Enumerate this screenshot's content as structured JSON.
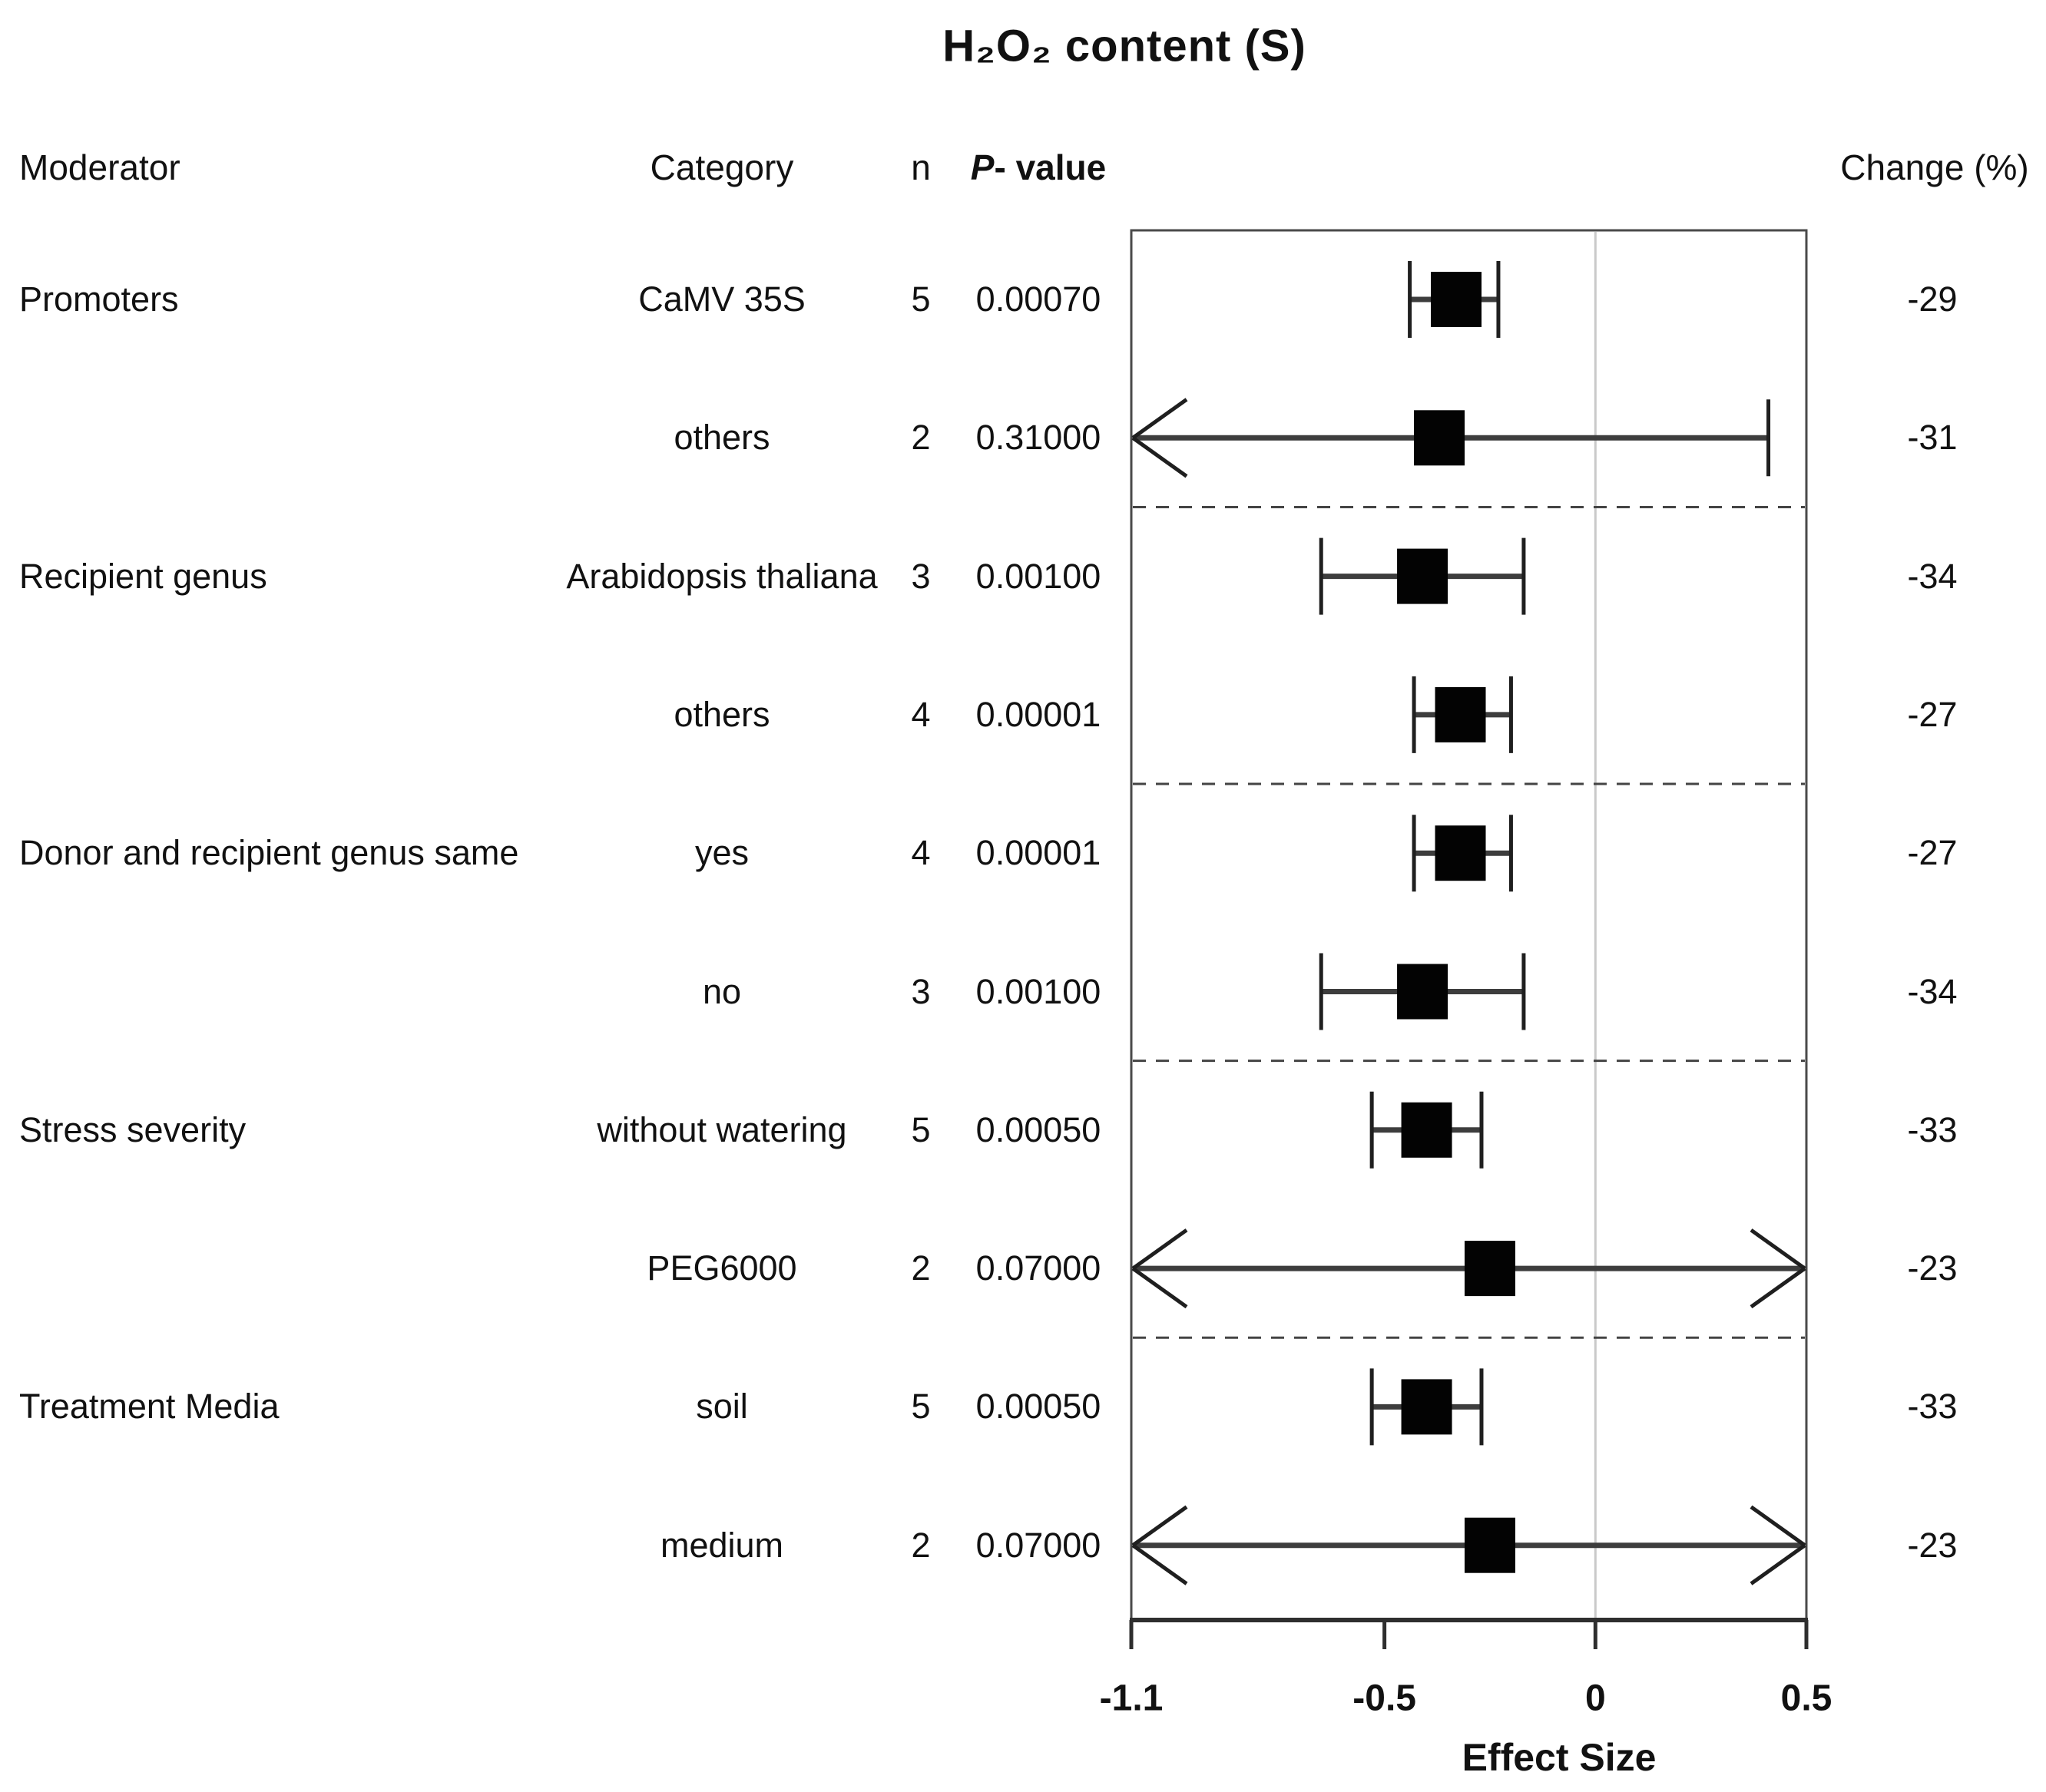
{
  "title": "H₂O₂ content (S)",
  "columns": {
    "moderator": "Moderator",
    "category": "Category",
    "n": "n",
    "pvalue_p": "P",
    "pvalue_rest": "- value",
    "change": "Change (%)"
  },
  "axis": {
    "label": "Effect Size",
    "tick_labels": [
      "-1.1",
      "-0.5",
      "0",
      "0.5"
    ]
  },
  "colors": {
    "text": "#111111",
    "square": "#030303",
    "ci_line": "#3d3d3d",
    "cap_line": "#1f1f1f",
    "box_border": "#4a4a4a",
    "axis_line": "#2e2e2e",
    "zero_line": "#c9c9c9",
    "separator": "#444444"
  },
  "chart_data": {
    "type": "forest",
    "title": "H₂O₂ content (S)",
    "xlabel": "Effect Size",
    "xlim": [
      -1.1,
      0.5
    ],
    "x_ticks": [
      -1.1,
      -0.5,
      0,
      0.5
    ],
    "zero_reference": 0,
    "separators_after_rows": [
      1,
      3,
      5,
      7
    ],
    "rows": [
      {
        "moderator": "Promoters",
        "category": "CaMV 35S",
        "n": "5",
        "p_value": "0.00070",
        "estimate": -0.33,
        "ci_low": -0.44,
        "ci_high": -0.23,
        "low_arrow": false,
        "high_arrow": false,
        "change_pct": "-29"
      },
      {
        "moderator": "",
        "category": "others",
        "n": "2",
        "p_value": "0.31000",
        "estimate": -0.37,
        "ci_low": -1.1,
        "ci_high": 0.41,
        "low_arrow": true,
        "high_arrow": false,
        "change_pct": "-31"
      },
      {
        "moderator": "Recipient genus",
        "category": "Arabidopsis thaliana",
        "n": "3",
        "p_value": "0.00100",
        "estimate": -0.41,
        "ci_low": -0.65,
        "ci_high": -0.17,
        "low_arrow": false,
        "high_arrow": false,
        "change_pct": "-34"
      },
      {
        "moderator": "",
        "category": "others",
        "n": "4",
        "p_value": "0.00001",
        "estimate": -0.32,
        "ci_low": -0.43,
        "ci_high": -0.2,
        "low_arrow": false,
        "high_arrow": false,
        "change_pct": "-27"
      },
      {
        "moderator": "Donor and recipient genus same",
        "category": "yes",
        "n": "4",
        "p_value": "0.00001",
        "estimate": -0.32,
        "ci_low": -0.43,
        "ci_high": -0.2,
        "low_arrow": false,
        "high_arrow": false,
        "change_pct": "-27"
      },
      {
        "moderator": "",
        "category": "no",
        "n": "3",
        "p_value": "0.00100",
        "estimate": -0.41,
        "ci_low": -0.65,
        "ci_high": -0.17,
        "low_arrow": false,
        "high_arrow": false,
        "change_pct": "-34"
      },
      {
        "moderator": "Stress severity",
        "category": "without watering",
        "n": "5",
        "p_value": "0.00050",
        "estimate": -0.4,
        "ci_low": -0.53,
        "ci_high": -0.27,
        "low_arrow": false,
        "high_arrow": false,
        "change_pct": "-33"
      },
      {
        "moderator": "",
        "category": "PEG6000",
        "n": "2",
        "p_value": "0.07000",
        "estimate": -0.25,
        "ci_low": -1.1,
        "ci_high": 0.5,
        "low_arrow": true,
        "high_arrow": true,
        "change_pct": "-23"
      },
      {
        "moderator": "Treatment Media",
        "category": "soil",
        "n": "5",
        "p_value": "0.00050",
        "estimate": -0.4,
        "ci_low": -0.53,
        "ci_high": -0.27,
        "low_arrow": false,
        "high_arrow": false,
        "change_pct": "-33"
      },
      {
        "moderator": "",
        "category": "medium",
        "n": "2",
        "p_value": "0.07000",
        "estimate": -0.25,
        "ci_low": -1.1,
        "ci_high": 0.5,
        "low_arrow": true,
        "high_arrow": true,
        "change_pct": "-23"
      }
    ]
  }
}
